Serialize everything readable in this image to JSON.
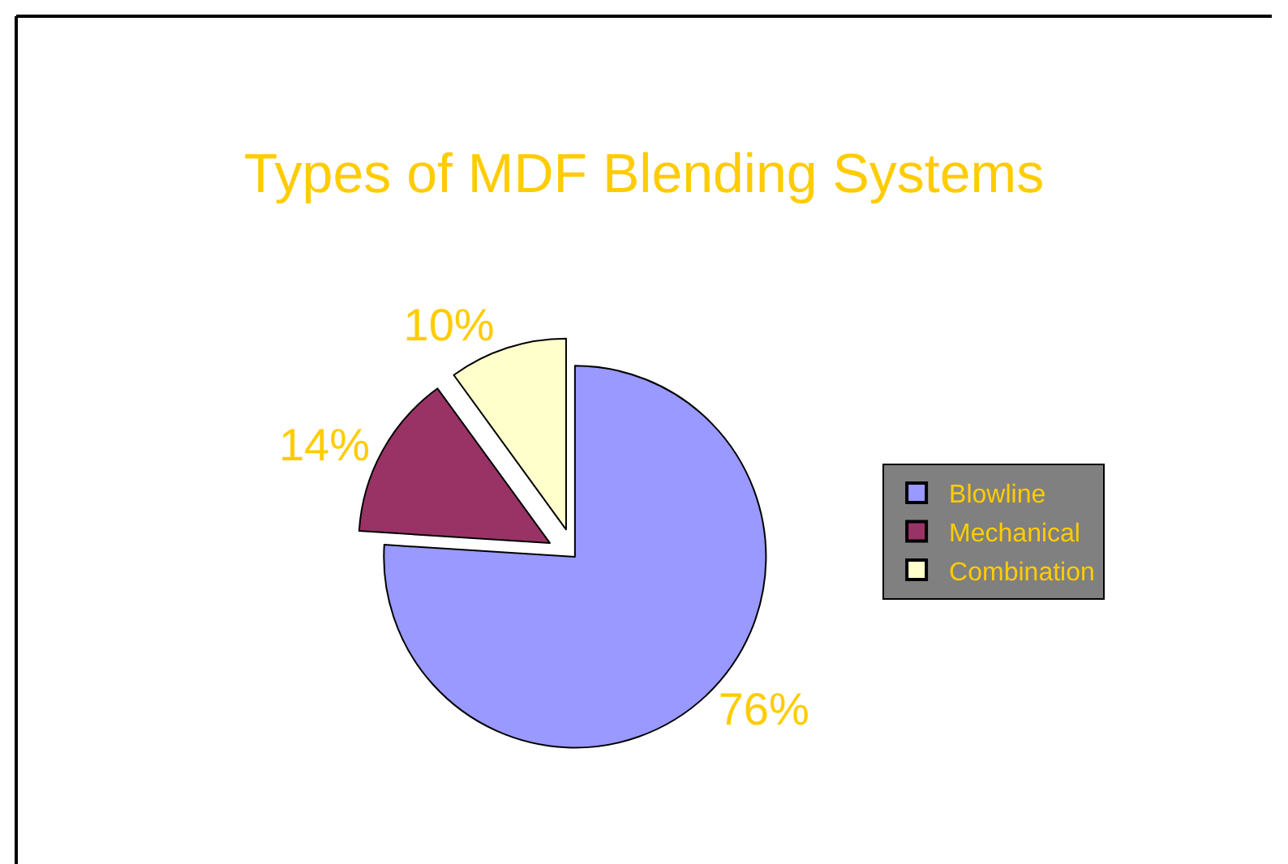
{
  "chart_data": {
    "type": "pie",
    "title": "Types of MDF Blending Systems",
    "categories": [
      "Blowline",
      "Mechanical",
      "Combination"
    ],
    "values": [
      76,
      14,
      10
    ],
    "value_labels": [
      "76%",
      "14%",
      "10%"
    ],
    "colors": [
      "#9999ff",
      "#993366",
      "#ffffcc"
    ],
    "legend": "right"
  }
}
